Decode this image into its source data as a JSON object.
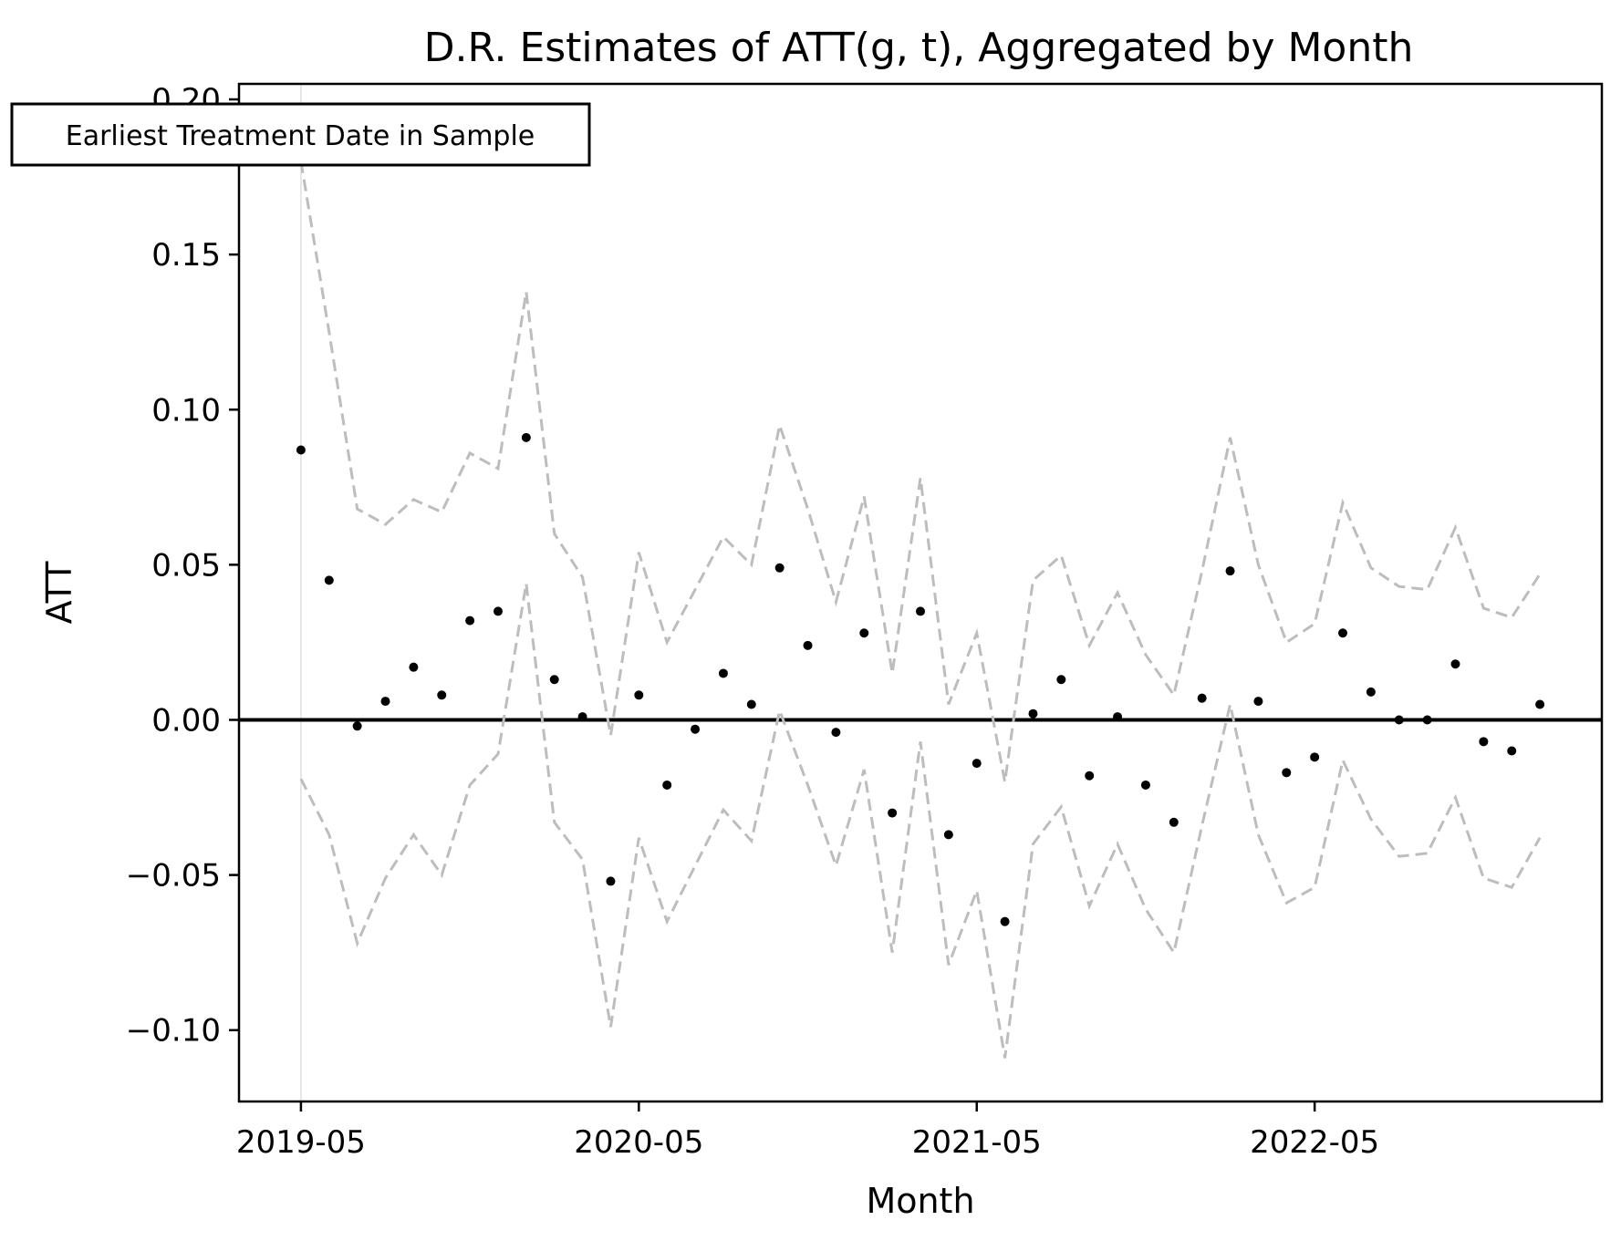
{
  "chart_data": {
    "type": "scatter",
    "title": "D.R. Estimates of ATT(g, t), Aggregated by Month",
    "xlabel": "Month",
    "ylabel": "ATT",
    "ylim": [
      -0.123,
      0.205
    ],
    "xlim": [
      -2.2,
      46.2
    ],
    "y_ticks": [
      -0.1,
      -0.05,
      0.0,
      0.05,
      0.1,
      0.15,
      0.2
    ],
    "y_tick_labels": [
      "−0.10",
      "−0.05",
      "0.00",
      "0.05",
      "0.10",
      "0.15",
      "0.20"
    ],
    "x_ticks": [
      0,
      12,
      24,
      36
    ],
    "x_tick_labels": [
      "2019-05",
      "2020-05",
      "2021-05",
      "2022-05"
    ],
    "months": [
      "2019-05",
      "2019-06",
      "2019-07",
      "2019-08",
      "2019-09",
      "2019-10",
      "2019-11",
      "2019-12",
      "2020-01",
      "2020-02",
      "2020-03",
      "2020-04",
      "2020-05",
      "2020-06",
      "2020-07",
      "2020-08",
      "2020-09",
      "2020-10",
      "2020-11",
      "2020-12",
      "2021-01",
      "2021-02",
      "2021-03",
      "2021-04",
      "2021-05",
      "2021-06",
      "2021-07",
      "2021-08",
      "2021-09",
      "2021-10",
      "2021-11",
      "2021-12",
      "2022-01",
      "2022-02",
      "2022-03",
      "2022-04",
      "2022-05",
      "2022-06",
      "2022-07",
      "2022-08",
      "2022-09",
      "2022-10",
      "2022-11",
      "2022-12",
      "2023-01"
    ],
    "series": [
      {
        "role": "estimate",
        "color": "#000000",
        "values": [
          0.087,
          0.045,
          -0.002,
          0.006,
          0.017,
          0.008,
          0.032,
          0.035,
          0.091,
          0.013,
          0.001,
          -0.052,
          0.008,
          -0.021,
          -0.003,
          0.015,
          0.005,
          0.049,
          0.024,
          -0.004,
          0.028,
          -0.03,
          0.035,
          -0.037,
          -0.014,
          -0.065,
          0.002,
          0.013,
          -0.018,
          0.001,
          -0.021,
          -0.033,
          0.007,
          0.048,
          0.006,
          -0.017,
          -0.012,
          0.028,
          0.009,
          -0.0,
          -0.0,
          0.018,
          -0.007,
          -0.01,
          0.005
        ]
      },
      {
        "role": "upper-bound",
        "color": "#bdbdbd",
        "values": [
          0.18,
          0.125,
          0.068,
          0.063,
          0.071,
          0.067,
          0.086,
          0.081,
          0.138,
          0.06,
          0.046,
          -0.005,
          0.054,
          0.025,
          0.042,
          0.059,
          0.05,
          0.095,
          0.068,
          0.038,
          0.072,
          0.015,
          0.078,
          0.005,
          0.028,
          -0.02,
          0.045,
          0.053,
          0.024,
          0.041,
          0.021,
          0.008,
          0.048,
          0.091,
          0.05,
          0.025,
          0.031,
          0.07,
          0.049,
          0.043,
          0.042,
          0.062,
          0.036,
          0.033,
          0.047
        ]
      },
      {
        "role": "lower-bound",
        "color": "#bdbdbd",
        "values": [
          -0.019,
          -0.037,
          -0.072,
          -0.051,
          -0.037,
          -0.05,
          -0.021,
          -0.011,
          0.044,
          -0.033,
          -0.045,
          -0.099,
          -0.038,
          -0.065,
          -0.047,
          -0.029,
          -0.039,
          0.003,
          -0.021,
          -0.047,
          -0.016,
          -0.075,
          -0.007,
          -0.079,
          -0.055,
          -0.109,
          -0.04,
          -0.028,
          -0.06,
          -0.04,
          -0.061,
          -0.075,
          -0.034,
          0.005,
          -0.037,
          -0.059,
          -0.054,
          -0.013,
          -0.032,
          -0.044,
          -0.043,
          -0.025,
          -0.051,
          -0.054,
          -0.038
        ]
      }
    ],
    "zero_line": {
      "y": 0.0,
      "color": "#000000"
    },
    "annotation": {
      "text": "Earliest Treatment Date in Sample",
      "x": 0,
      "vline_color": "#e0e0e0"
    },
    "grid": false,
    "legend": "none"
  }
}
